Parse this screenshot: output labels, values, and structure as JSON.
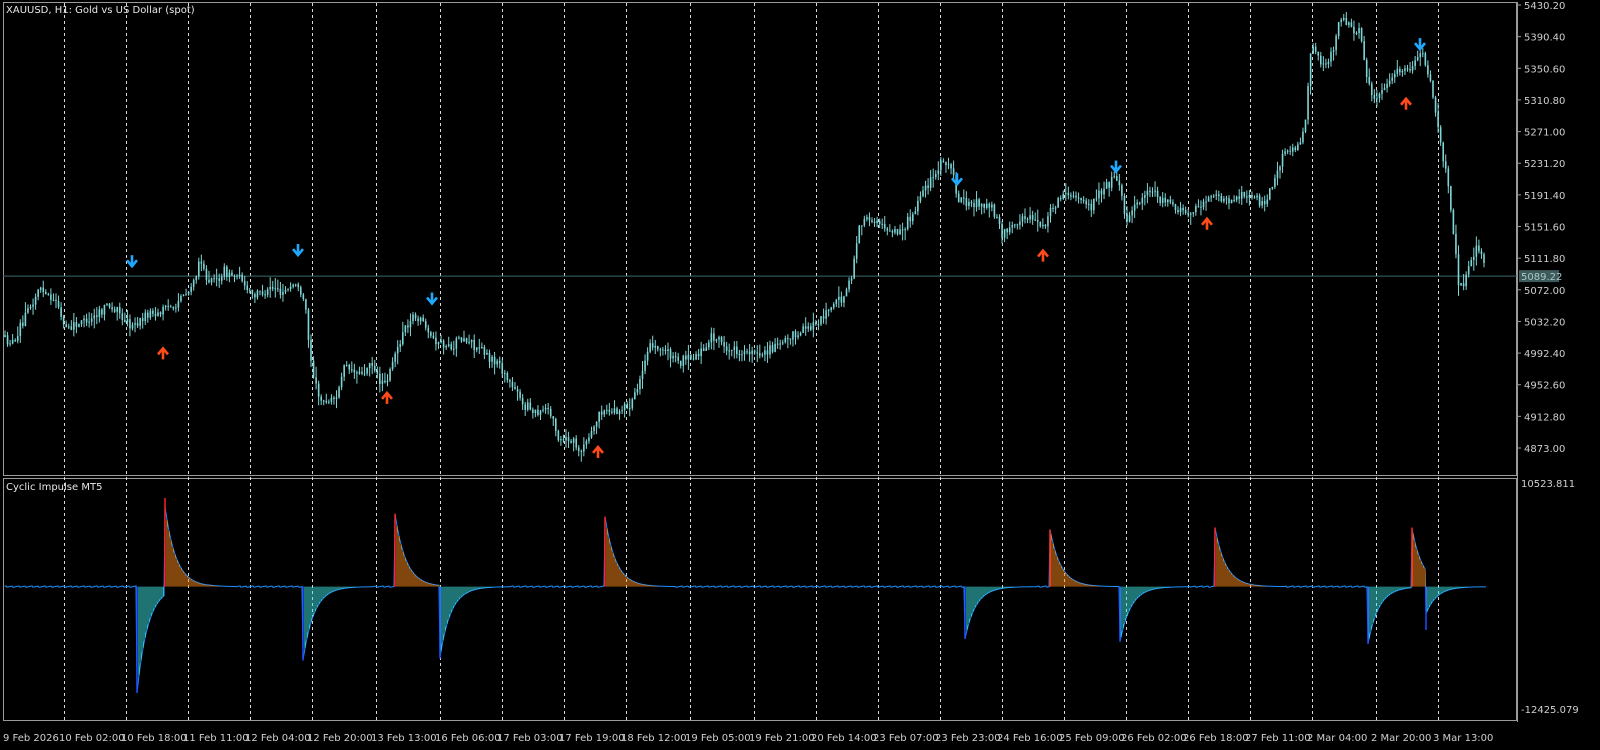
{
  "chart_data": [
    {
      "type": "candlestick",
      "title": "XAUUSD, H1:  Gold vs US Dollar (spot)",
      "ylim": [
        4853.0,
        5430.2
      ],
      "y_ticks": [
        "5430.20",
        "5390.40",
        "5350.60",
        "5310.80",
        "5271.00",
        "5231.20",
        "5191.40",
        "5151.60",
        "5111.80",
        "5072.00",
        "5032.20",
        "4992.40",
        "4952.60",
        "4912.80",
        "4873.00"
      ],
      "current_price": "5089.22",
      "current_value": 5089.22,
      "x_labels": [
        "9 Feb 2026",
        "10 Feb 02:00",
        "10 Feb 18:00",
        "11 Feb 11:00",
        "12 Feb 04:00",
        "12 Feb 20:00",
        "13 Feb 13:00",
        "16 Feb 06:00",
        "17 Feb 03:00",
        "17 Feb 19:00",
        "18 Feb 12:00",
        "19 Feb 05:00",
        "19 Feb 21:00",
        "20 Feb 14:00",
        "23 Feb 07:00",
        "23 Feb 23:00",
        "24 Feb 16:00",
        "25 Feb 09:00",
        "26 Feb 02:00",
        "26 Feb 18:00",
        "27 Feb 11:00",
        "2 Mar 04:00",
        "2 Mar 20:00",
        "3 Mar 13:00"
      ],
      "price_path": [
        [
          0,
          5025
        ],
        [
          10,
          5000
        ],
        [
          25,
          5035
        ],
        [
          40,
          5075
        ],
        [
          55,
          5060
        ],
        [
          65,
          5025
        ],
        [
          80,
          5030
        ],
        [
          95,
          5040
        ],
        [
          108,
          5055
        ],
        [
          120,
          5040
        ],
        [
          132,
          5025
        ],
        [
          145,
          5040
        ],
        [
          160,
          5045
        ],
        [
          175,
          5055
        ],
        [
          190,
          5070
        ],
        [
          200,
          5105
        ],
        [
          212,
          5080
        ],
        [
          225,
          5095
        ],
        [
          240,
          5085
        ],
        [
          255,
          5065
        ],
        [
          268,
          5075
        ],
        [
          282,
          5070
        ],
        [
          295,
          5080
        ],
        [
          305,
          5060
        ],
        [
          312,
          4965
        ],
        [
          322,
          4930
        ],
        [
          335,
          4935
        ],
        [
          345,
          4975
        ],
        [
          358,
          4965
        ],
        [
          372,
          4975
        ],
        [
          385,
          4950
        ],
        [
          395,
          4990
        ],
        [
          405,
          5025
        ],
        [
          415,
          5040
        ],
        [
          425,
          5030
        ],
        [
          435,
          5010
        ],
        [
          448,
          5000
        ],
        [
          460,
          5010
        ],
        [
          472,
          5005
        ],
        [
          485,
          4990
        ],
        [
          498,
          4980
        ],
        [
          510,
          4955
        ],
        [
          522,
          4930
        ],
        [
          535,
          4920
        ],
        [
          548,
          4925
        ],
        [
          558,
          4885
        ],
        [
          570,
          4885
        ],
        [
          582,
          4870
        ],
        [
          592,
          4895
        ],
        [
          602,
          4920
        ],
        [
          615,
          4920
        ],
        [
          628,
          4925
        ],
        [
          640,
          4960
        ],
        [
          652,
          5005
        ],
        [
          665,
          4995
        ],
        [
          678,
          4980
        ],
        [
          690,
          4985
        ],
        [
          702,
          4995
        ],
        [
          712,
          5015
        ],
        [
          725,
          5000
        ],
        [
          738,
          4995
        ],
        [
          752,
          4990
        ],
        [
          765,
          4995
        ],
        [
          778,
          5000
        ],
        [
          790,
          5010
        ],
        [
          805,
          5025
        ],
        [
          818,
          5030
        ],
        [
          830,
          5050
        ],
        [
          842,
          5060
        ],
        [
          852,
          5090
        ],
        [
          860,
          5160
        ],
        [
          872,
          5160
        ],
        [
          885,
          5150
        ],
        [
          898,
          5145
        ],
        [
          910,
          5160
        ],
        [
          920,
          5190
        ],
        [
          932,
          5215
        ],
        [
          942,
          5235
        ],
        [
          950,
          5230
        ],
        [
          958,
          5185
        ],
        [
          968,
          5180
        ],
        [
          980,
          5180
        ],
        [
          992,
          5175
        ],
        [
          1002,
          5140
        ],
        [
          1012,
          5155
        ],
        [
          1022,
          5160
        ],
        [
          1032,
          5165
        ],
        [
          1044,
          5150
        ],
        [
          1052,
          5175
        ],
        [
          1065,
          5195
        ],
        [
          1078,
          5190
        ],
        [
          1090,
          5175
        ],
        [
          1100,
          5195
        ],
        [
          1112,
          5210
        ],
        [
          1118,
          5215
        ],
        [
          1126,
          5160
        ],
        [
          1136,
          5180
        ],
        [
          1148,
          5195
        ],
        [
          1160,
          5185
        ],
        [
          1172,
          5180
        ],
        [
          1184,
          5170
        ],
        [
          1196,
          5175
        ],
        [
          1208,
          5185
        ],
        [
          1218,
          5190
        ],
        [
          1230,
          5180
        ],
        [
          1242,
          5195
        ],
        [
          1255,
          5185
        ],
        [
          1265,
          5180
        ],
        [
          1275,
          5215
        ],
        [
          1285,
          5245
        ],
        [
          1297,
          5250
        ],
        [
          1305,
          5275
        ],
        [
          1312,
          5385
        ],
        [
          1322,
          5350
        ],
        [
          1332,
          5370
        ],
        [
          1340,
          5415
        ],
        [
          1350,
          5405
        ],
        [
          1360,
          5395
        ],
        [
          1368,
          5330
        ],
        [
          1378,
          5310
        ],
        [
          1388,
          5330
        ],
        [
          1398,
          5350
        ],
        [
          1408,
          5345
        ],
        [
          1418,
          5370
        ],
        [
          1424,
          5365
        ],
        [
          1430,
          5335
        ],
        [
          1438,
          5280
        ],
        [
          1446,
          5220
        ],
        [
          1452,
          5160
        ],
        [
          1458,
          5085
        ],
        [
          1464,
          5075
        ],
        [
          1470,
          5110
        ],
        [
          1478,
          5125
        ],
        [
          1486,
          5100
        ]
      ],
      "arrows_down": [
        [
          132,
          5108
        ],
        [
          298,
          5122
        ],
        [
          432,
          5061
        ],
        [
          957,
          5211
        ],
        [
          1116,
          5227
        ],
        [
          1420,
          5381
        ]
      ],
      "arrows_up": [
        [
          163,
          4992
        ],
        [
          387,
          4936
        ],
        [
          598,
          4868
        ],
        [
          1043,
          5115
        ],
        [
          1207,
          5155
        ],
        [
          1406,
          5306
        ]
      ]
    },
    {
      "type": "histogram",
      "title": "Cyclic Impulse MT5",
      "ylim": [
        -12425.079,
        10523.811
      ],
      "y_ticks": [
        "10523.811",
        "-12425.079"
      ],
      "events": [
        {
          "type": "neg",
          "x": 137,
          "peak": -10800
        },
        {
          "type": "pos",
          "x": 165,
          "peak": 9000
        },
        {
          "type": "neg",
          "x": 303,
          "peak": -7500
        },
        {
          "type": "pos",
          "x": 395,
          "peak": 7400
        },
        {
          "type": "neg",
          "x": 440,
          "peak": -7300
        },
        {
          "type": "pos",
          "x": 605,
          "peak": 7100
        },
        {
          "type": "neg",
          "x": 965,
          "peak": -5300
        },
        {
          "type": "pos",
          "x": 1050,
          "peak": 5800
        },
        {
          "type": "neg",
          "x": 1120,
          "peak": -5600
        },
        {
          "type": "pos",
          "x": 1215,
          "peak": 6000
        },
        {
          "type": "neg",
          "x": 1368,
          "peak": -5800
        },
        {
          "type": "pos",
          "x": 1412,
          "peak": 6000
        },
        {
          "type": "neg",
          "x": 1426,
          "peak": -4400
        }
      ]
    }
  ],
  "colors": {
    "background": "#000000",
    "candle": "#7fd6d6",
    "grid": "#ffffff",
    "arrow_down": "#1ea9ff",
    "arrow_up": "#ff4a1a",
    "hist_pos": "#ff8c1a",
    "hist_pos_edge": "#ff2020",
    "hist_neg": "#40e6e6",
    "hist_neg_edge": "#1a4dff",
    "hist_line": "#1e90ff",
    "price_tag": "#3e5a5a"
  }
}
